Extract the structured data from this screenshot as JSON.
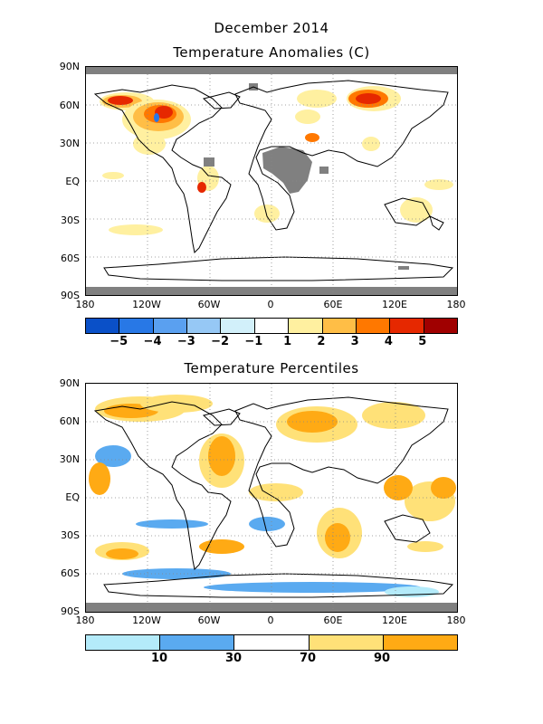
{
  "figure_title": "December 2014",
  "panel1": {
    "title": "Temperature Anomalies (C)",
    "colorbar_colors": [
      "#0a50c8",
      "#2878e6",
      "#5aa0f0",
      "#96c8f5",
      "#d2f0fa",
      "#ffffff",
      "#fff0a0",
      "#ffbe46",
      "#ff7800",
      "#e62800",
      "#a00000"
    ],
    "colorbar_labels": [
      "−5",
      "−4",
      "−3",
      "−2",
      "−1",
      "1",
      "2",
      "3",
      "4",
      "5"
    ]
  },
  "panel2": {
    "title": "Temperature Percentiles",
    "colorbar_colors": [
      "#b4ebfa",
      "#5aaaf0",
      "#ffffff",
      "#ffe178",
      "#ffaa14"
    ],
    "colorbar_labels": [
      "10",
      "30",
      "70",
      "90"
    ]
  },
  "lat_labels": [
    "90N",
    "60N",
    "30N",
    "EQ",
    "30S",
    "60S",
    "90S"
  ],
  "lon_labels": [
    "180",
    "120W",
    "60W",
    "0",
    "60E",
    "120E",
    "180"
  ],
  "colors": {
    "land_missing": "#808080",
    "grid": "#888888",
    "coast": "#000000"
  }
}
